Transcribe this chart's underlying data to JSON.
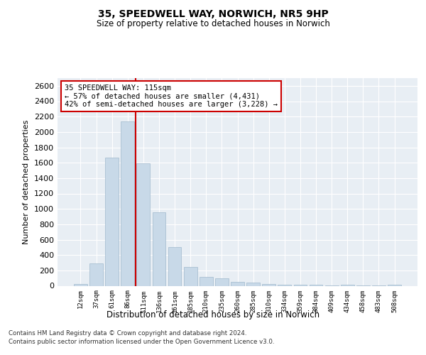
{
  "title": "35, SPEEDWELL WAY, NORWICH, NR5 9HP",
  "subtitle": "Size of property relative to detached houses in Norwich",
  "xlabel": "Distribution of detached houses by size in Norwich",
  "ylabel": "Number of detached properties",
  "categories": [
    "12sqm",
    "37sqm",
    "61sqm",
    "86sqm",
    "111sqm",
    "136sqm",
    "161sqm",
    "185sqm",
    "210sqm",
    "235sqm",
    "260sqm",
    "285sqm",
    "310sqm",
    "334sqm",
    "359sqm",
    "384sqm",
    "409sqm",
    "434sqm",
    "458sqm",
    "483sqm",
    "508sqm"
  ],
  "values": [
    20,
    290,
    1670,
    2140,
    1590,
    960,
    500,
    245,
    120,
    100,
    55,
    40,
    25,
    15,
    15,
    10,
    5,
    15,
    5,
    5,
    15
  ],
  "bar_color": "#c8d9e8",
  "bar_edge_color": "#a0b8cc",
  "highlight_index": 4,
  "highlight_line_color": "#cc0000",
  "annotation_line1": "35 SPEEDWELL WAY: 115sqm",
  "annotation_line2": "← 57% of detached houses are smaller (4,431)",
  "annotation_line3": "42% of semi-detached houses are larger (3,228) →",
  "annotation_box_color": "#cc0000",
  "ylim": [
    0,
    2700
  ],
  "yticks": [
    0,
    200,
    400,
    600,
    800,
    1000,
    1200,
    1400,
    1600,
    1800,
    2000,
    2200,
    2400,
    2600
  ],
  "bg_color": "#e8eef4",
  "grid_color": "#ffffff",
  "footer_line1": "Contains HM Land Registry data © Crown copyright and database right 2024.",
  "footer_line2": "Contains public sector information licensed under the Open Government Licence v3.0."
}
